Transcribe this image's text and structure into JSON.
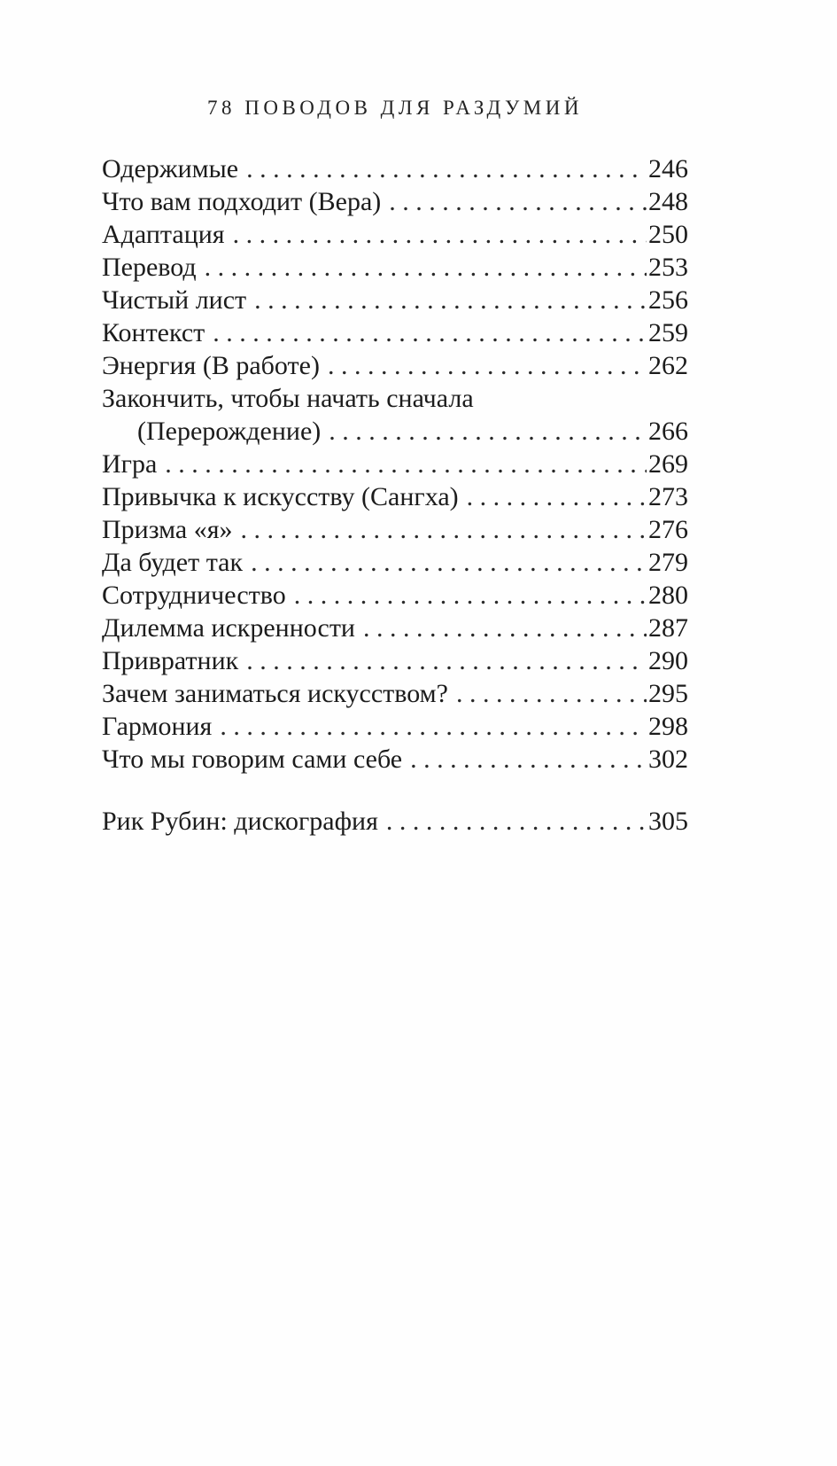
{
  "header": {
    "title": "78 ПОВОДОВ ДЛЯ РАЗДУМИЙ"
  },
  "toc": {
    "entries": [
      {
        "title": "Одержимые",
        "page": "246"
      },
      {
        "title": "Что вам подходит (Вера)",
        "page": "248"
      },
      {
        "title": "Адаптация",
        "page": "250"
      },
      {
        "title": "Перевод",
        "page": "253"
      },
      {
        "title": "Чистый лист",
        "page": "256"
      },
      {
        "title": "Контекст",
        "page": "259"
      },
      {
        "title": "Энергия (В работе)",
        "page": "262"
      },
      {
        "title": "Закончить, чтобы начать сначала",
        "title_line2": "(Перерождение)",
        "page": "266"
      },
      {
        "title": "Игра",
        "page": "269"
      },
      {
        "title": "Привычка к искусству (Сангха)",
        "page": "273"
      },
      {
        "title": "Призма «я»",
        "page": "276"
      },
      {
        "title": "Да будет так",
        "page": "279"
      },
      {
        "title": "Сотрудничество",
        "page": "280"
      },
      {
        "title": "Дилемма искренности",
        "page": "287"
      },
      {
        "title": "Привратник",
        "page": "290"
      },
      {
        "title": "Зачем заниматься искусством?",
        "page": "295"
      },
      {
        "title": "Гармония",
        "page": "298"
      },
      {
        "title": "Что мы говорим сами себе",
        "page": "302"
      },
      {
        "title": "Рик Рубин: дискография",
        "page": "305"
      }
    ]
  }
}
